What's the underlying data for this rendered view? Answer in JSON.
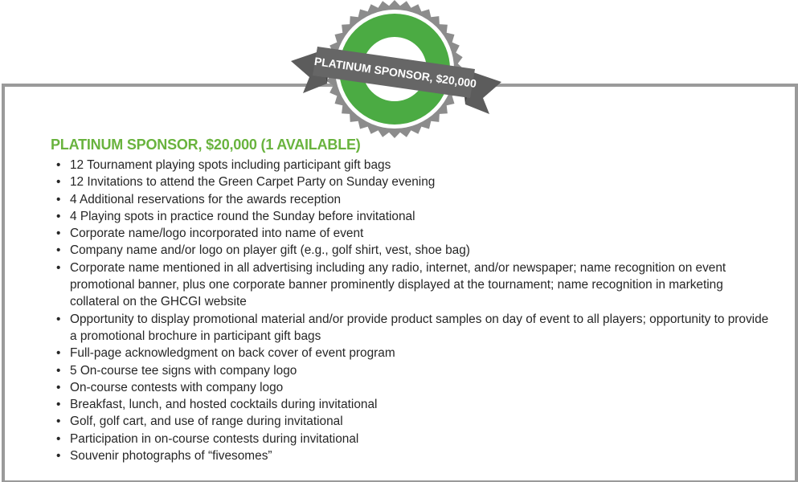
{
  "badge": {
    "ribbon_text": "PLATINUM SPONSOR, $20,000",
    "colors": {
      "seal_outer": "#8c8c8c",
      "seal_ring": "#ffffff",
      "seal_green": "#4bab43",
      "seal_center": "#ffffff",
      "ribbon": "#666666",
      "ribbon_tail": "#4a4a4a"
    }
  },
  "section": {
    "title": "PLATINUM SPONSOR, $20,000 (1 AVAILABLE)",
    "title_color": "#69b33e",
    "border_color": "#9a9a9a",
    "benefits": [
      "12 Tournament playing spots including participant gift bags",
      "12 Invitations to attend the Green Carpet Party on Sunday evening",
      "4 Additional reservations for the awards reception",
      "4 Playing spots in practice round the Sunday before invitational",
      "Corporate name/logo incorporated into name of event",
      "Company name and/or logo on player gift (e.g., golf shirt, vest, shoe bag)",
      "Corporate name mentioned in all advertising including any radio, internet, and/or newspaper; name recognition on event promotional banner, plus one corporate banner prominently displayed at the tournament; name recognition in marketing collateral on the GHCGI website",
      "Opportunity to display promotional material and/or provide product samples on day of event to all players; opportunity to provide a promotional brochure in participant gift bags",
      "Full-page acknowledgment on back cover of event program",
      "5 On-course tee signs with company logo",
      "On-course contests with company logo",
      "Breakfast, lunch, and hosted cocktails during invitational",
      "Golf, golf cart, and use of range during invitational",
      "Participation in on-course contests during invitational",
      "Souvenir photographs of “fivesomes”"
    ]
  }
}
